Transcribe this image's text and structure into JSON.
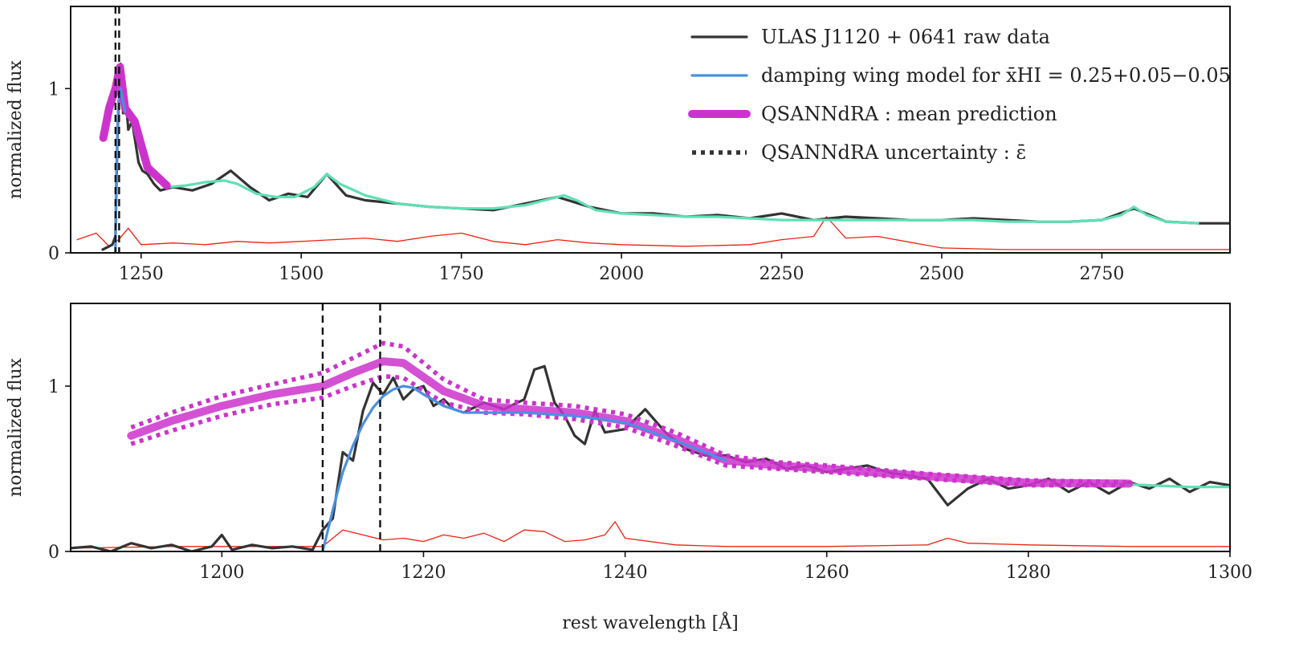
{
  "chart_data": [
    {
      "type": "line",
      "panel": "top",
      "ylabel": "normalized flux",
      "xlim": [
        1140,
        2950
      ],
      "ylim": [
        0,
        1.5
      ],
      "xticks": [
        1250,
        1500,
        1750,
        2000,
        2250,
        2500,
        2750
      ],
      "yticks": [
        0,
        1
      ],
      "vlines": [
        1210,
        1215.7
      ],
      "legend": {
        "placement": "top-right",
        "entries": [
          {
            "series": "raw",
            "style": "solid",
            "text": "ULAS J1120 + 0641 raw data"
          },
          {
            "series": "damping",
            "style": "solid",
            "text": "damping wing model for x̄HI = 0.25+0.05−0.05"
          },
          {
            "series": "mean",
            "style": "thick",
            "text": "QSANNdRA :  mean prediction"
          },
          {
            "series": "uncertainty",
            "style": "dotted",
            "text": "QSANNdRA uncertainty : ε̄"
          }
        ]
      },
      "series": [
        {
          "key": "raw",
          "color": "#333333",
          "x": [
            1190,
            1205,
            1210,
            1213,
            1216,
            1218,
            1222,
            1226,
            1230,
            1236,
            1240,
            1246,
            1252,
            1260,
            1270,
            1280,
            1300,
            1330,
            1360,
            1390,
            1420,
            1450,
            1480,
            1510,
            1540,
            1570,
            1600,
            1650,
            1700,
            1750,
            1800,
            1850,
            1900,
            1950,
            2000,
            2050,
            2100,
            2150,
            2200,
            2250,
            2300,
            2350,
            2400,
            2450,
            2500,
            2550,
            2600,
            2650,
            2700,
            2750,
            2800,
            2850,
            2900,
            2950
          ],
          "y": [
            0.02,
            0.05,
            0.1,
            0.7,
            1.0,
            1.15,
            0.85,
            0.95,
            0.75,
            0.8,
            0.7,
            0.55,
            0.5,
            0.48,
            0.42,
            0.38,
            0.4,
            0.38,
            0.42,
            0.5,
            0.4,
            0.32,
            0.36,
            0.34,
            0.48,
            0.35,
            0.32,
            0.3,
            0.28,
            0.27,
            0.26,
            0.3,
            0.34,
            0.28,
            0.24,
            0.24,
            0.22,
            0.23,
            0.21,
            0.24,
            0.2,
            0.22,
            0.21,
            0.2,
            0.2,
            0.21,
            0.2,
            0.19,
            0.19,
            0.2,
            0.27,
            0.19,
            0.18,
            0.18
          ]
        },
        {
          "key": "continuum",
          "color": "#5fe0b4",
          "x": [
            1290,
            1320,
            1350,
            1380,
            1400,
            1430,
            1460,
            1490,
            1520,
            1540,
            1560,
            1600,
            1650,
            1700,
            1750,
            1800,
            1850,
            1880,
            1910,
            1930,
            1960,
            2000,
            2050,
            2100,
            2150,
            2200,
            2250,
            2300,
            2350,
            2400,
            2450,
            2500,
            2550,
            2600,
            2650,
            2700,
            2750,
            2780,
            2800,
            2820,
            2850,
            2900
          ],
          "y": [
            0.4,
            0.41,
            0.43,
            0.44,
            0.42,
            0.36,
            0.34,
            0.34,
            0.4,
            0.48,
            0.42,
            0.35,
            0.3,
            0.28,
            0.27,
            0.27,
            0.29,
            0.32,
            0.35,
            0.32,
            0.26,
            0.24,
            0.23,
            0.22,
            0.22,
            0.21,
            0.2,
            0.2,
            0.2,
            0.2,
            0.2,
            0.2,
            0.2,
            0.19,
            0.19,
            0.19,
            0.2,
            0.23,
            0.28,
            0.23,
            0.19,
            0.18
          ]
        },
        {
          "key": "mean",
          "color": "#cc33cc",
          "x": [
            1191,
            1200,
            1210,
            1217,
            1225,
            1240,
            1260,
            1290
          ],
          "y": [
            0.7,
            0.88,
            1.0,
            1.13,
            0.88,
            0.8,
            0.52,
            0.41
          ]
        },
        {
          "key": "damping",
          "color": "#4a90e2",
          "x": [
            1210,
            1211,
            1213,
            1215,
            1218,
            1221,
            1225
          ],
          "y": [
            0.0,
            0.4,
            0.75,
            0.93,
            1.0,
            0.94,
            0.86
          ]
        },
        {
          "key": "noise",
          "color": "#ee2211",
          "x": [
            1150,
            1180,
            1200,
            1215,
            1230,
            1250,
            1300,
            1350,
            1400,
            1450,
            1500,
            1550,
            1600,
            1650,
            1700,
            1750,
            1800,
            1850,
            1900,
            1950,
            2000,
            2100,
            2200,
            2250,
            2300,
            2320,
            2350,
            2400,
            2500,
            2600,
            2700,
            2800,
            2950
          ],
          "y": [
            0.08,
            0.12,
            0.04,
            0.08,
            0.15,
            0.05,
            0.06,
            0.05,
            0.07,
            0.06,
            0.07,
            0.08,
            0.09,
            0.07,
            0.1,
            0.12,
            0.07,
            0.05,
            0.08,
            0.06,
            0.05,
            0.04,
            0.05,
            0.08,
            0.1,
            0.22,
            0.09,
            0.1,
            0.03,
            0.02,
            0.02,
            0.02,
            0.02
          ]
        }
      ]
    },
    {
      "type": "line",
      "panel": "bottom",
      "ylabel": "normalized flux",
      "xlabel": "rest wavelength [Å]",
      "xlim": [
        1185,
        1300
      ],
      "ylim": [
        0,
        1.5
      ],
      "xticks": [
        1200,
        1220,
        1240,
        1260,
        1280,
        1300
      ],
      "yticks": [
        0,
        1
      ],
      "vlines": [
        1210,
        1215.7
      ],
      "series": [
        {
          "key": "raw",
          "color": "#333333",
          "x": [
            1185,
            1187,
            1189,
            1191,
            1193,
            1195,
            1197,
            1199,
            1200,
            1201,
            1203,
            1205,
            1207,
            1209,
            1210,
            1211,
            1212,
            1213,
            1214,
            1215,
            1216,
            1217,
            1218,
            1219,
            1220,
            1221,
            1222,
            1223,
            1224,
            1226,
            1228,
            1230,
            1231,
            1232,
            1233,
            1234,
            1235,
            1236,
            1237,
            1238,
            1240,
            1242,
            1244,
            1246,
            1248,
            1250,
            1252,
            1254,
            1256,
            1258,
            1260,
            1262,
            1264,
            1266,
            1268,
            1270,
            1272,
            1274,
            1276,
            1278,
            1280,
            1282,
            1284,
            1286,
            1288,
            1290,
            1292,
            1294,
            1296,
            1298,
            1300
          ],
          "y": [
            0.02,
            0.03,
            0.0,
            0.05,
            0.02,
            0.04,
            0.0,
            0.03,
            0.1,
            0.01,
            0.04,
            0.02,
            0.03,
            0.01,
            0.13,
            0.2,
            0.6,
            0.55,
            0.85,
            1.02,
            0.95,
            1.05,
            0.92,
            0.98,
            1.0,
            0.88,
            0.92,
            0.86,
            0.84,
            0.9,
            0.86,
            0.92,
            1.1,
            1.12,
            0.9,
            0.82,
            0.7,
            0.65,
            0.85,
            0.72,
            0.74,
            0.86,
            0.72,
            0.62,
            0.58,
            0.58,
            0.54,
            0.56,
            0.5,
            0.52,
            0.48,
            0.5,
            0.52,
            0.48,
            0.46,
            0.44,
            0.28,
            0.38,
            0.44,
            0.38,
            0.4,
            0.44,
            0.36,
            0.42,
            0.35,
            0.42,
            0.38,
            0.44,
            0.36,
            0.42,
            0.4
          ]
        },
        {
          "key": "noise",
          "color": "#ee2211",
          "x": [
            1185,
            1195,
            1205,
            1210,
            1211,
            1212,
            1214,
            1216,
            1218,
            1220,
            1222,
            1224,
            1226,
            1228,
            1230,
            1232,
            1234,
            1236,
            1238,
            1239,
            1240,
            1245,
            1250,
            1260,
            1270,
            1272,
            1274,
            1280,
            1290,
            1300
          ],
          "y": [
            0.02,
            0.03,
            0.03,
            0.03,
            0.08,
            0.13,
            0.1,
            0.07,
            0.08,
            0.06,
            0.1,
            0.08,
            0.11,
            0.06,
            0.13,
            0.12,
            0.06,
            0.07,
            0.1,
            0.18,
            0.08,
            0.04,
            0.03,
            0.03,
            0.04,
            0.08,
            0.05,
            0.04,
            0.03,
            0.03
          ]
        },
        {
          "key": "continuum",
          "color": "#5fe0b4",
          "x": [
            1288,
            1292,
            1296,
            1300
          ],
          "y": [
            0.41,
            0.4,
            0.39,
            0.39
          ]
        },
        {
          "key": "uncertainty",
          "color": "#cc33cc",
          "x": [
            1191,
            1195,
            1200,
            1205,
            1210,
            1213,
            1216,
            1218,
            1222,
            1226,
            1230,
            1235,
            1240,
            1245,
            1250,
            1255,
            1260,
            1270,
            1280,
            1290
          ],
          "y": [
            0.75,
            0.84,
            0.94,
            1.01,
            1.08,
            1.17,
            1.26,
            1.24,
            1.04,
            0.92,
            0.9,
            0.88,
            0.83,
            0.72,
            0.58,
            0.54,
            0.52,
            0.47,
            0.43,
            0.42
          ]
        },
        {
          "key": "uncertainty",
          "color": "#cc33cc",
          "x": [
            1191,
            1195,
            1200,
            1205,
            1210,
            1213,
            1216,
            1218,
            1222,
            1226,
            1230,
            1235,
            1240,
            1245,
            1250,
            1255,
            1260,
            1270,
            1280,
            1290
          ],
          "y": [
            0.65,
            0.73,
            0.82,
            0.89,
            0.93,
            1.0,
            1.06,
            1.05,
            0.9,
            0.84,
            0.83,
            0.8,
            0.75,
            0.64,
            0.52,
            0.5,
            0.48,
            0.44,
            0.4,
            0.4
          ]
        },
        {
          "key": "mean",
          "color": "#cc33cc",
          "x": [
            1191,
            1195,
            1200,
            1205,
            1210,
            1213,
            1216,
            1218,
            1222,
            1226,
            1230,
            1235,
            1240,
            1245,
            1250,
            1255,
            1260,
            1270,
            1280,
            1290
          ],
          "y": [
            0.7,
            0.79,
            0.88,
            0.95,
            1.0,
            1.08,
            1.15,
            1.14,
            0.97,
            0.88,
            0.86,
            0.84,
            0.79,
            0.68,
            0.55,
            0.52,
            0.5,
            0.455,
            0.415,
            0.41
          ]
        },
        {
          "key": "damping",
          "color": "#4a90e2",
          "x": [
            1210,
            1211,
            1212,
            1213,
            1214,
            1215,
            1216,
            1217,
            1218,
            1219,
            1220,
            1222,
            1224,
            1226,
            1230,
            1235,
            1240,
            1245,
            1250
          ],
          "y": [
            0.0,
            0.25,
            0.48,
            0.64,
            0.77,
            0.87,
            0.94,
            0.98,
            1.0,
            0.99,
            0.95,
            0.88,
            0.84,
            0.84,
            0.84,
            0.82,
            0.78,
            0.67,
            0.55
          ]
        }
      ]
    }
  ]
}
